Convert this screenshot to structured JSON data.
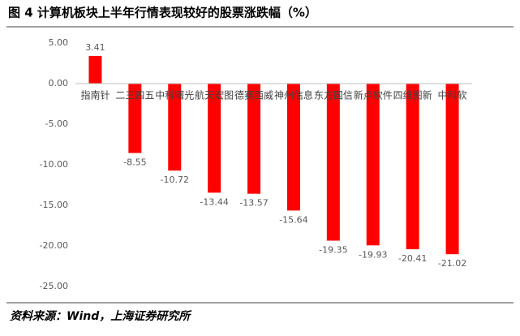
{
  "chart_data": {
    "type": "bar",
    "title": "图 4 计算机板块上半年行情表现较好的股票涨跌幅（%）",
    "source": "资料来源：Wind，上海证券研究所",
    "categories": [
      "指南针",
      "二三四五",
      "中科曙光",
      "航天宏图",
      "德赛西威",
      "神州信息",
      "东方国信",
      "新点软件",
      "四维图新",
      "中科软"
    ],
    "values": [
      3.41,
      -8.55,
      -10.72,
      -13.44,
      -13.57,
      -15.64,
      -19.35,
      -19.93,
      -20.41,
      -21.02
    ],
    "color": "#ff0000",
    "ylim": [
      -25,
      5
    ],
    "yticks": [
      {
        "value": 5,
        "label": "5.00"
      },
      {
        "value": 0,
        "label": "0.00"
      },
      {
        "value": -5,
        "label": "-5.00"
      },
      {
        "value": -10,
        "label": "-10.00"
      },
      {
        "value": -15,
        "label": "-15.00"
      },
      {
        "value": -20,
        "label": "-20.00"
      },
      {
        "value": -25,
        "label": "-25.00"
      }
    ],
    "grid": false
  }
}
